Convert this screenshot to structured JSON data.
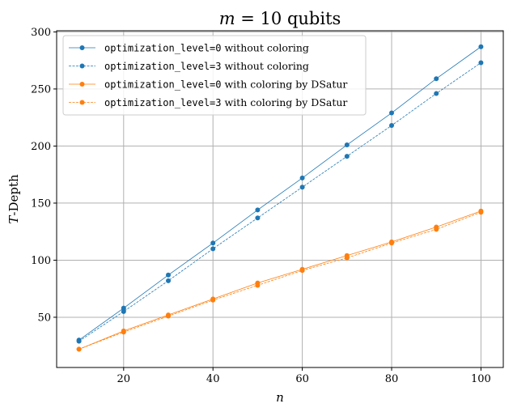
{
  "chart_data": {
    "type": "line",
    "title": "m = 10 qubits",
    "title_math": "m",
    "title_rest": " = 10 qubits",
    "xlabel": "n",
    "ylabel": "T-Depth",
    "ylabel_math": "T",
    "ylabel_rest": "-Depth",
    "xlim": [
      5,
      105
    ],
    "ylim": [
      6,
      301
    ],
    "xticks": [
      20,
      40,
      60,
      80,
      100
    ],
    "yticks": [
      50,
      100,
      150,
      200,
      250,
      300
    ],
    "grid": true,
    "legend_position": "top-left",
    "x": [
      10,
      20,
      30,
      40,
      50,
      60,
      70,
      80,
      90,
      100
    ],
    "series": [
      {
        "name": "optimization_level=0 without coloring",
        "name_code": "optimization_level=0",
        "name_rest": " without coloring",
        "color": "#1f77b4",
        "linestyle": "solid",
        "values": [
          30,
          58,
          87,
          115,
          144,
          172,
          201,
          229,
          259,
          287
        ]
      },
      {
        "name": "optimization_level=3 without coloring",
        "name_code": "optimization_level=3",
        "name_rest": " without coloring",
        "color": "#1f77b4",
        "linestyle": "dashed",
        "values": [
          29,
          55,
          82,
          110,
          137,
          164,
          191,
          218,
          246,
          273
        ]
      },
      {
        "name": "optimization_level=0 with coloring by DSatur",
        "name_code": "optimization_level=0",
        "name_rest": " with coloring by DSatur",
        "color": "#ff7f0e",
        "linestyle": "solid",
        "values": [
          22,
          38,
          52,
          66,
          80,
          92,
          104,
          116,
          129,
          143
        ]
      },
      {
        "name": "optimization_level=3 with coloring by DSatur",
        "name_code": "optimization_level=3",
        "name_rest": " with coloring by DSatur",
        "color": "#ff7f0e",
        "linestyle": "dashed",
        "values": [
          22,
          37,
          51,
          65,
          78,
          91,
          102,
          115,
          127,
          142
        ]
      }
    ]
  }
}
